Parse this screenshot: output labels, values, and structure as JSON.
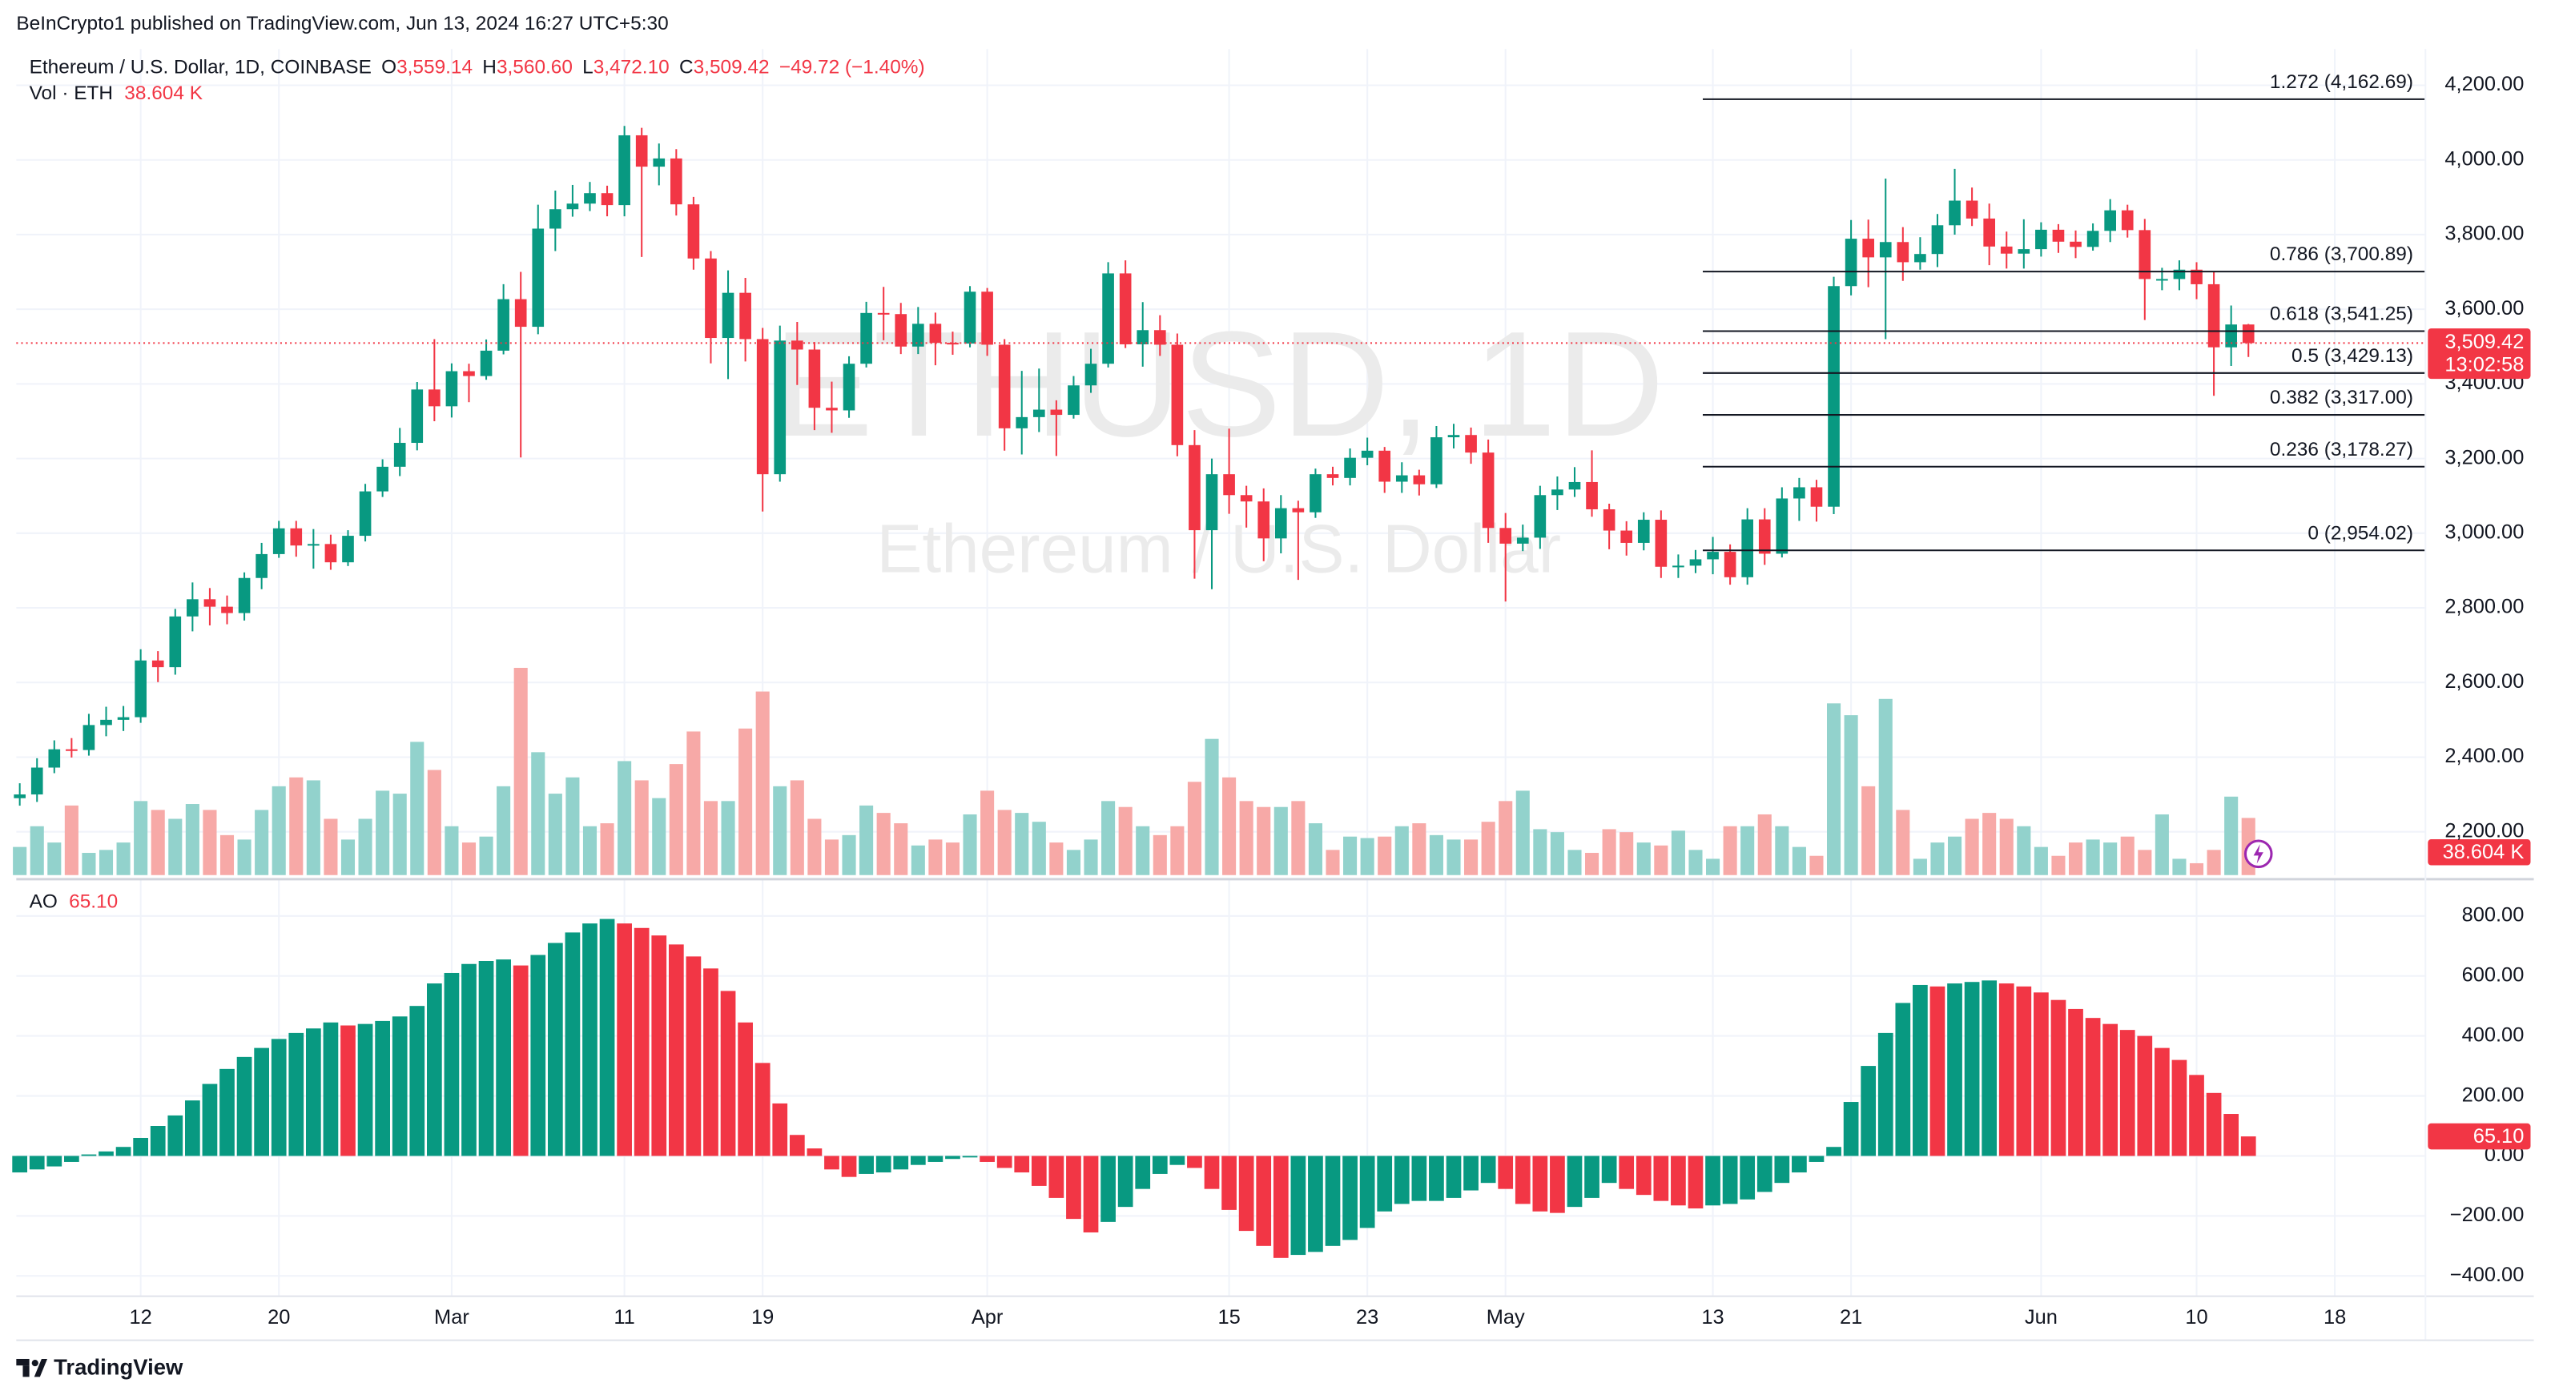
{
  "header": {
    "publisher": "BeInCrypto1 published on TradingView.com, Jun 13, 2024 16:27 UTC+5:30",
    "brand": "TradingView"
  },
  "chart_data": [
    {
      "type": "candlestick",
      "title": "Ethereum / U.S. Dollar, 1D, COINBASE",
      "legend": {
        "o_key": "O",
        "o": "3,559.14",
        "h_key": "H",
        "h": "3,560.60",
        "l_key": "L",
        "l": "3,472.10",
        "c_key": "C",
        "c": "3,509.42",
        "change": "−49.72 (−1.40%)"
      },
      "watermark": "ETHUSD, 1D",
      "watermark_subtitle": "Ethereum / U.S. Dollar",
      "up_color": "#089981",
      "down_color": "#f23645",
      "open": [
        2290,
        2300,
        2372,
        2421,
        2419,
        2486,
        2500,
        2507,
        2659,
        2641,
        2777,
        2823,
        2803,
        2786,
        2880,
        2944,
        3013,
        2967,
        2971,
        2922,
        2993,
        3112,
        3178,
        3242,
        3385,
        3340,
        3434,
        3421,
        3489,
        3627,
        3553,
        3816,
        3868,
        3883,
        3911,
        3879,
        4066,
        3982,
        4004,
        3881,
        3736,
        3523,
        3644,
        3520,
        3158,
        3516,
        3492,
        3336,
        3329,
        3454,
        3590,
        3587,
        3500,
        3561,
        3510,
        3508,
        3647,
        3505,
        3281,
        3311,
        3331,
        3317,
        3396,
        3454,
        3696,
        3506,
        3544,
        3505,
        3236,
        3008,
        3158,
        3102,
        3085,
        2986,
        3067,
        3056,
        3158,
        3148,
        3202,
        3221,
        3138,
        3155,
        3131,
        3257,
        3263,
        3216,
        3014,
        2972,
        2988,
        3102,
        3117,
        3137,
        3064,
        3007,
        2974,
        3036,
        2910,
        2913,
        2930,
        2950,
        2882,
        3037,
        2945,
        3093,
        3123,
        3071,
        3662,
        3789,
        3739,
        3780,
        3726,
        3748,
        3825,
        3891,
        3843,
        3768,
        3749,
        3761,
        3813,
        3781,
        3767,
        3810,
        3865,
        3812,
        3681,
        3681,
        3706,
        3667,
        3498,
        3559.14
      ],
      "high": [
        2330,
        2397,
        2445,
        2451,
        2516,
        2535,
        2537,
        2689,
        2684,
        2797,
        2868,
        2853,
        2833,
        2895,
        2974,
        3033,
        3033,
        3011,
        2996,
        3008,
        3132,
        3198,
        3282,
        3405,
        3520,
        3455,
        3454,
        3519,
        3667,
        3700,
        3880,
        3918,
        3933,
        3941,
        3931,
        4091,
        4086,
        4044,
        4029,
        3901,
        3756,
        3704,
        3684,
        3550,
        3556,
        3566,
        3512,
        3406,
        3474,
        3620,
        3660,
        3617,
        3606,
        3591,
        3540,
        3662,
        3657,
        3520,
        3435,
        3441,
        3356,
        3421,
        3494,
        3726,
        3731,
        3619,
        3584,
        3535,
        3276,
        3200,
        3280,
        3127,
        3120,
        3102,
        3087,
        3173,
        3178,
        3227,
        3256,
        3231,
        3190,
        3170,
        3287,
        3293,
        3283,
        3251,
        3054,
        3023,
        3127,
        3152,
        3177,
        3222,
        3079,
        3032,
        3056,
        3061,
        2943,
        2955,
        2990,
        2970,
        3067,
        3067,
        3123,
        3148,
        3143,
        3687,
        3839,
        3840,
        3950,
        3820,
        3793,
        3855,
        3976,
        3926,
        3883,
        3808,
        3841,
        3833,
        3828,
        3811,
        3830,
        3895,
        3880,
        3842,
        3711,
        3731,
        3726,
        3702,
        3610,
        3560.6
      ],
      "low": [
        2270,
        2280,
        2357,
        2399,
        2404,
        2456,
        2470,
        2492,
        2601,
        2621,
        2737,
        2753,
        2756,
        2766,
        2850,
        2934,
        2937,
        2905,
        2902,
        2912,
        2978,
        3097,
        3153,
        3222,
        3300,
        3310,
        3351,
        3411,
        3479,
        3203,
        3533,
        3756,
        3848,
        3863,
        3849,
        3849,
        3740,
        3932,
        3851,
        3706,
        3455,
        3413,
        3460,
        3058,
        3138,
        3397,
        3276,
        3269,
        3309,
        3444,
        3517,
        3480,
        3480,
        3450,
        3478,
        3498,
        3475,
        3221,
        3211,
        3271,
        3207,
        3307,
        3376,
        3444,
        3496,
        3446,
        3475,
        3206,
        2878,
        2850,
        3052,
        3015,
        2925,
        2946,
        2875,
        3041,
        3128,
        3128,
        3182,
        3108,
        3108,
        3101,
        3121,
        3227,
        3186,
        2974,
        2817,
        2952,
        2958,
        3062,
        3097,
        3044,
        2957,
        2940,
        2954,
        2880,
        2880,
        2893,
        2890,
        2862,
        2862,
        2915,
        2935,
        3033,
        3031,
        3051,
        3637,
        3659,
        3520,
        3676,
        3706,
        3713,
        3800,
        3823,
        3718,
        3709,
        3709,
        3741,
        3751,
        3737,
        3757,
        3780,
        3792,
        3571,
        3651,
        3651,
        3627,
        3368,
        3448,
        3472.1
      ],
      "close": [
        2300,
        2372,
        2421,
        2419,
        2486,
        2500,
        2507,
        2659,
        2641,
        2777,
        2823,
        2803,
        2786,
        2880,
        2944,
        3013,
        2967,
        2971,
        2922,
        2993,
        3112,
        3178,
        3242,
        3385,
        3340,
        3434,
        3421,
        3489,
        3627,
        3553,
        3816,
        3868,
        3883,
        3911,
        3879,
        4066,
        3982,
        4004,
        3881,
        3736,
        3523,
        3644,
        3520,
        3158,
        3516,
        3492,
        3336,
        3329,
        3454,
        3590,
        3587,
        3500,
        3561,
        3510,
        3508,
        3647,
        3505,
        3281,
        3311,
        3331,
        3317,
        3396,
        3454,
        3696,
        3506,
        3544,
        3505,
        3236,
        3008,
        3158,
        3102,
        3085,
        2986,
        3067,
        3056,
        3158,
        3148,
        3202,
        3221,
        3138,
        3155,
        3131,
        3257,
        3263,
        3216,
        3014,
        2972,
        2988,
        3102,
        3117,
        3137,
        3064,
        3007,
        2974,
        3036,
        2910,
        2913,
        2930,
        2950,
        2882,
        3037,
        2945,
        3093,
        3123,
        3071,
        3662,
        3789,
        3739,
        3780,
        3726,
        3748,
        3825,
        3891,
        3843,
        3768,
        3749,
        3761,
        3813,
        3781,
        3767,
        3810,
        3865,
        3812,
        3681,
        3681,
        3706,
        3667,
        3498,
        3559.14,
        3509.42
      ],
      "last_price_label": "3,509.42",
      "countdown": "13:02:58",
      "xlim": [
        -0.2,
        139.2
      ],
      "xticks": [
        {
          "value": 7,
          "label": "12"
        },
        {
          "value": 15,
          "label": "20"
        },
        {
          "value": 25,
          "label": "Mar"
        },
        {
          "value": 35,
          "label": "11"
        },
        {
          "value": 43,
          "label": "19"
        },
        {
          "value": 56,
          "label": "Apr"
        },
        {
          "value": 70,
          "label": "15"
        },
        {
          "value": 78,
          "label": "23"
        },
        {
          "value": 86,
          "label": "May"
        },
        {
          "value": 98,
          "label": "13"
        },
        {
          "value": 106,
          "label": "21"
        },
        {
          "value": 117,
          "label": "Jun"
        },
        {
          "value": 126,
          "label": "10"
        },
        {
          "value": 134,
          "label": "18"
        }
      ],
      "ylim": [
        2084,
        4297
      ],
      "yticks": [
        {
          "value": 2200,
          "label": "2,200.00"
        },
        {
          "value": 2400,
          "label": "2,400.00"
        },
        {
          "value": 2600,
          "label": "2,600.00"
        },
        {
          "value": 2800,
          "label": "2,800.00"
        },
        {
          "value": 3000,
          "label": "3,000.00"
        },
        {
          "value": 3200,
          "label": "3,200.00"
        },
        {
          "value": 3400,
          "label": "3,400.00"
        },
        {
          "value": 3600,
          "label": "3,600.00"
        },
        {
          "value": 3800,
          "label": "3,800.00"
        },
        {
          "value": 4000,
          "label": "4,000.00"
        },
        {
          "value": 4200,
          "label": "4,200.00"
        }
      ],
      "grid": true,
      "fib_levels": [
        {
          "value": 4162.69,
          "label": "1.272 (4,162.69)"
        },
        {
          "value": 3700.89,
          "label": "0.786 (3,700.89)"
        },
        {
          "value": 3541.25,
          "label": "0.618 (3,541.25)"
        },
        {
          "value": 3429.13,
          "label": "0.5 (3,429.13)"
        },
        {
          "value": 3317.0,
          "label": "0.382 (3,317.00)"
        },
        {
          "value": 3178.27,
          "label": "0.236 (3,178.27)"
        },
        {
          "value": 2954.02,
          "label": "0 (2,954.02)"
        }
      ]
    },
    {
      "type": "volume",
      "title": "Vol · ETH",
      "values": [
        19,
        33,
        22,
        47,
        15,
        17,
        22,
        50,
        44,
        38,
        48,
        44,
        27,
        24,
        44,
        60,
        66,
        64,
        38,
        24,
        38,
        57,
        55,
        90,
        71,
        33,
        22,
        26,
        60,
        140,
        83,
        55,
        66,
        33,
        35,
        77,
        64,
        52,
        75,
        97,
        50,
        50,
        99,
        124,
        60,
        64,
        38,
        24,
        27,
        47,
        42,
        35,
        20,
        24,
        22,
        41,
        57,
        44,
        42,
        36,
        22,
        17,
        24,
        50,
        46,
        33,
        27,
        33,
        63,
        92,
        66,
        50,
        46,
        46,
        50,
        35,
        17,
        26,
        25,
        26,
        33,
        35,
        27,
        24,
        24,
        36,
        50,
        57,
        31,
        29,
        17,
        15,
        31,
        29,
        22,
        20,
        30,
        17,
        11,
        33,
        33,
        41,
        33,
        19,
        13,
        116,
        108,
        60,
        119,
        44,
        11,
        22,
        26,
        38,
        42,
        38,
        33,
        19,
        13,
        22,
        24,
        22,
        26,
        17,
        41,
        11,
        8,
        17,
        53,
        38.604
      ],
      "last_label": "38.604 K",
      "up_color": "#92d2cc",
      "down_color": "#f7a9a7",
      "ylim": [
        0,
        558
      ]
    },
    {
      "type": "ao",
      "title": "AO",
      "values": [
        -55,
        -45,
        -35,
        -20,
        5,
        15,
        30,
        60,
        100,
        135,
        185,
        240,
        290,
        330,
        360,
        390,
        410,
        425,
        445,
        435,
        440,
        450,
        465,
        500,
        575,
        610,
        640,
        650,
        655,
        635,
        670,
        710,
        745,
        775,
        790,
        775,
        760,
        735,
        705,
        665,
        625,
        550,
        445,
        310,
        175,
        70,
        25,
        -45,
        -70,
        -60,
        -55,
        -45,
        -30,
        -20,
        -10,
        -5,
        -20,
        -40,
        -55,
        -100,
        -140,
        -210,
        -255,
        -220,
        -170,
        -110,
        -60,
        -30,
        -40,
        -110,
        -180,
        -250,
        -300,
        -340,
        -330,
        -320,
        -300,
        -280,
        -240,
        -185,
        -160,
        -150,
        -150,
        -140,
        -115,
        -90,
        -110,
        -160,
        -185,
        -190,
        -170,
        -140,
        -90,
        -110,
        -130,
        -150,
        -165,
        -175,
        -165,
        -160,
        -145,
        -120,
        -90,
        -55,
        -20,
        30,
        180,
        300,
        410,
        510,
        570,
        565,
        575,
        580,
        585,
        575,
        565,
        545,
        520,
        490,
        460,
        440,
        420,
        400,
        360,
        320,
        270,
        210,
        140,
        65.1
      ],
      "last_label": "65.10",
      "up_color": "#089981",
      "down_color": "#f23645",
      "ylim": [
        -465,
        920
      ],
      "yticks": [
        {
          "value": -400,
          "label": "−400.00"
        },
        {
          "value": -200,
          "label": "−200.00"
        },
        {
          "value": 0,
          "label": "0.00"
        },
        {
          "value": 200,
          "label": "200.00"
        },
        {
          "value": 400,
          "label": "400.00"
        },
        {
          "value": 600,
          "label": "600.00"
        },
        {
          "value": 800,
          "label": "800.00"
        }
      ]
    }
  ]
}
